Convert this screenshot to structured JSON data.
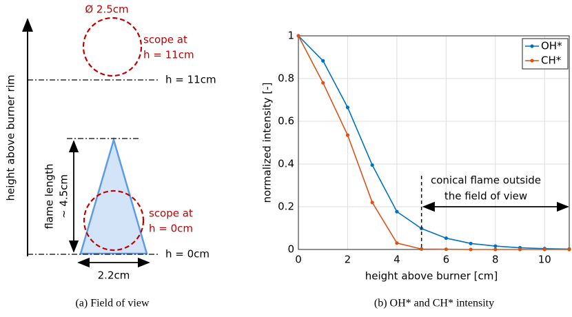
{
  "field_of_view": {
    "diameter": "Ø 2.5cm",
    "scope_top": [
      "scope at",
      "h = 11cm"
    ],
    "level_top": "h = 11cm",
    "axis_label": "height above burner rim",
    "flame_length": [
      "flame length",
      "~ 4.5cm"
    ],
    "scope_bottom": [
      "scope at",
      "h = 0cm"
    ],
    "level_bottom": "h = 0cm",
    "base_width": "2.2cm",
    "caption": "(a) Field of view"
  },
  "chart_data": {
    "type": "line",
    "caption": "(b) OH* and CH* intensity",
    "xlabel": "height above burner [cm]",
    "ylabel": "normalized intensity [-]",
    "x": [
      0,
      1,
      2,
      3,
      4,
      5,
      6,
      7,
      8,
      9,
      10,
      11
    ],
    "series": [
      {
        "name": "OH*",
        "color": "#0072bd",
        "values": [
          1,
          0.883,
          0.665,
          0.395,
          0.177,
          0.098,
          0.053,
          0.028,
          0.016,
          0.008,
          0.004,
          0.002
        ]
      },
      {
        "name": "CH*",
        "color": "#d95319",
        "values": [
          1,
          0.78,
          0.535,
          0.22,
          0.03,
          0.002,
          0.001,
          0,
          0,
          0,
          0,
          0
        ]
      }
    ],
    "xlim": [
      0,
      11
    ],
    "xticks": [
      0,
      2,
      4,
      6,
      8,
      10
    ],
    "ylim": [
      0,
      1
    ],
    "yticks": [
      0,
      0.2,
      0.4,
      0.6,
      0.8,
      1
    ],
    "grid": true,
    "legend": "top-right",
    "annotation": {
      "text": [
        "conical flame outside",
        "the field of view"
      ],
      "x": 5
    }
  }
}
